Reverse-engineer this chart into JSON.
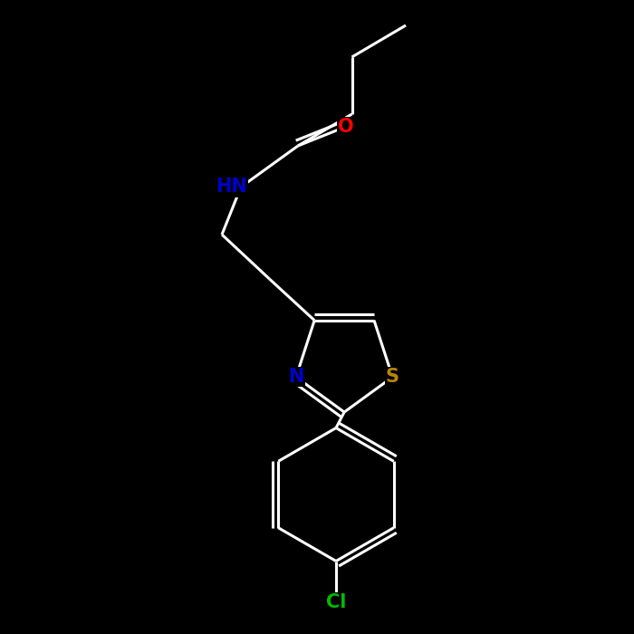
{
  "background_color": "#000000",
  "bond_color": "#ffffff",
  "atom_colors": {
    "O": "#ff0000",
    "N": "#0000cd",
    "S": "#b8860b",
    "Cl": "#00bb00",
    "C": "#ffffff",
    "H": "#ffffff"
  },
  "figsize": [
    7.0,
    7.0
  ],
  "dpi": 100,
  "lw": 2.2,
  "fontsize": 15
}
